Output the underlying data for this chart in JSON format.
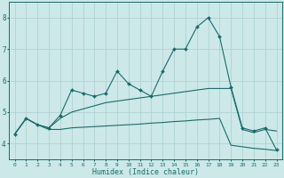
{
  "xlabel": "Humidex (Indice chaleur)",
  "bg_color": "#cce8e8",
  "grid_color": "#aacfcf",
  "line_color": "#1a6b6b",
  "x_values": [
    0,
    1,
    2,
    3,
    4,
    5,
    6,
    7,
    8,
    9,
    10,
    11,
    12,
    13,
    14,
    15,
    16,
    17,
    18,
    19,
    20,
    21,
    22,
    23
  ],
  "line_main": [
    4.3,
    4.8,
    4.6,
    4.5,
    4.9,
    5.7,
    5.6,
    5.5,
    5.6,
    6.3,
    5.9,
    5.7,
    5.5,
    6.3,
    7.0,
    7.0,
    7.7,
    8.0,
    7.4,
    5.8,
    4.5,
    4.4,
    4.5,
    3.8
  ],
  "line_upper": [
    4.3,
    4.8,
    4.6,
    4.5,
    4.8,
    5.0,
    5.1,
    5.2,
    5.3,
    5.35,
    5.4,
    5.45,
    5.5,
    5.55,
    5.6,
    5.65,
    5.7,
    5.75,
    5.75,
    5.75,
    4.45,
    4.35,
    4.45,
    4.4
  ],
  "line_lower": [
    4.3,
    4.8,
    4.6,
    4.45,
    4.45,
    4.5,
    4.52,
    4.54,
    4.56,
    4.58,
    4.6,
    4.62,
    4.65,
    4.67,
    4.7,
    4.72,
    4.75,
    4.77,
    4.8,
    3.95,
    3.9,
    3.85,
    3.82,
    3.78
  ],
  "ylim": [
    3.5,
    8.5
  ],
  "yticks": [
    4,
    5,
    6,
    7,
    8
  ],
  "xticks": [
    0,
    1,
    2,
    3,
    4,
    5,
    6,
    7,
    8,
    9,
    10,
    11,
    12,
    13,
    14,
    15,
    16,
    17,
    18,
    19,
    20,
    21,
    22,
    23
  ]
}
